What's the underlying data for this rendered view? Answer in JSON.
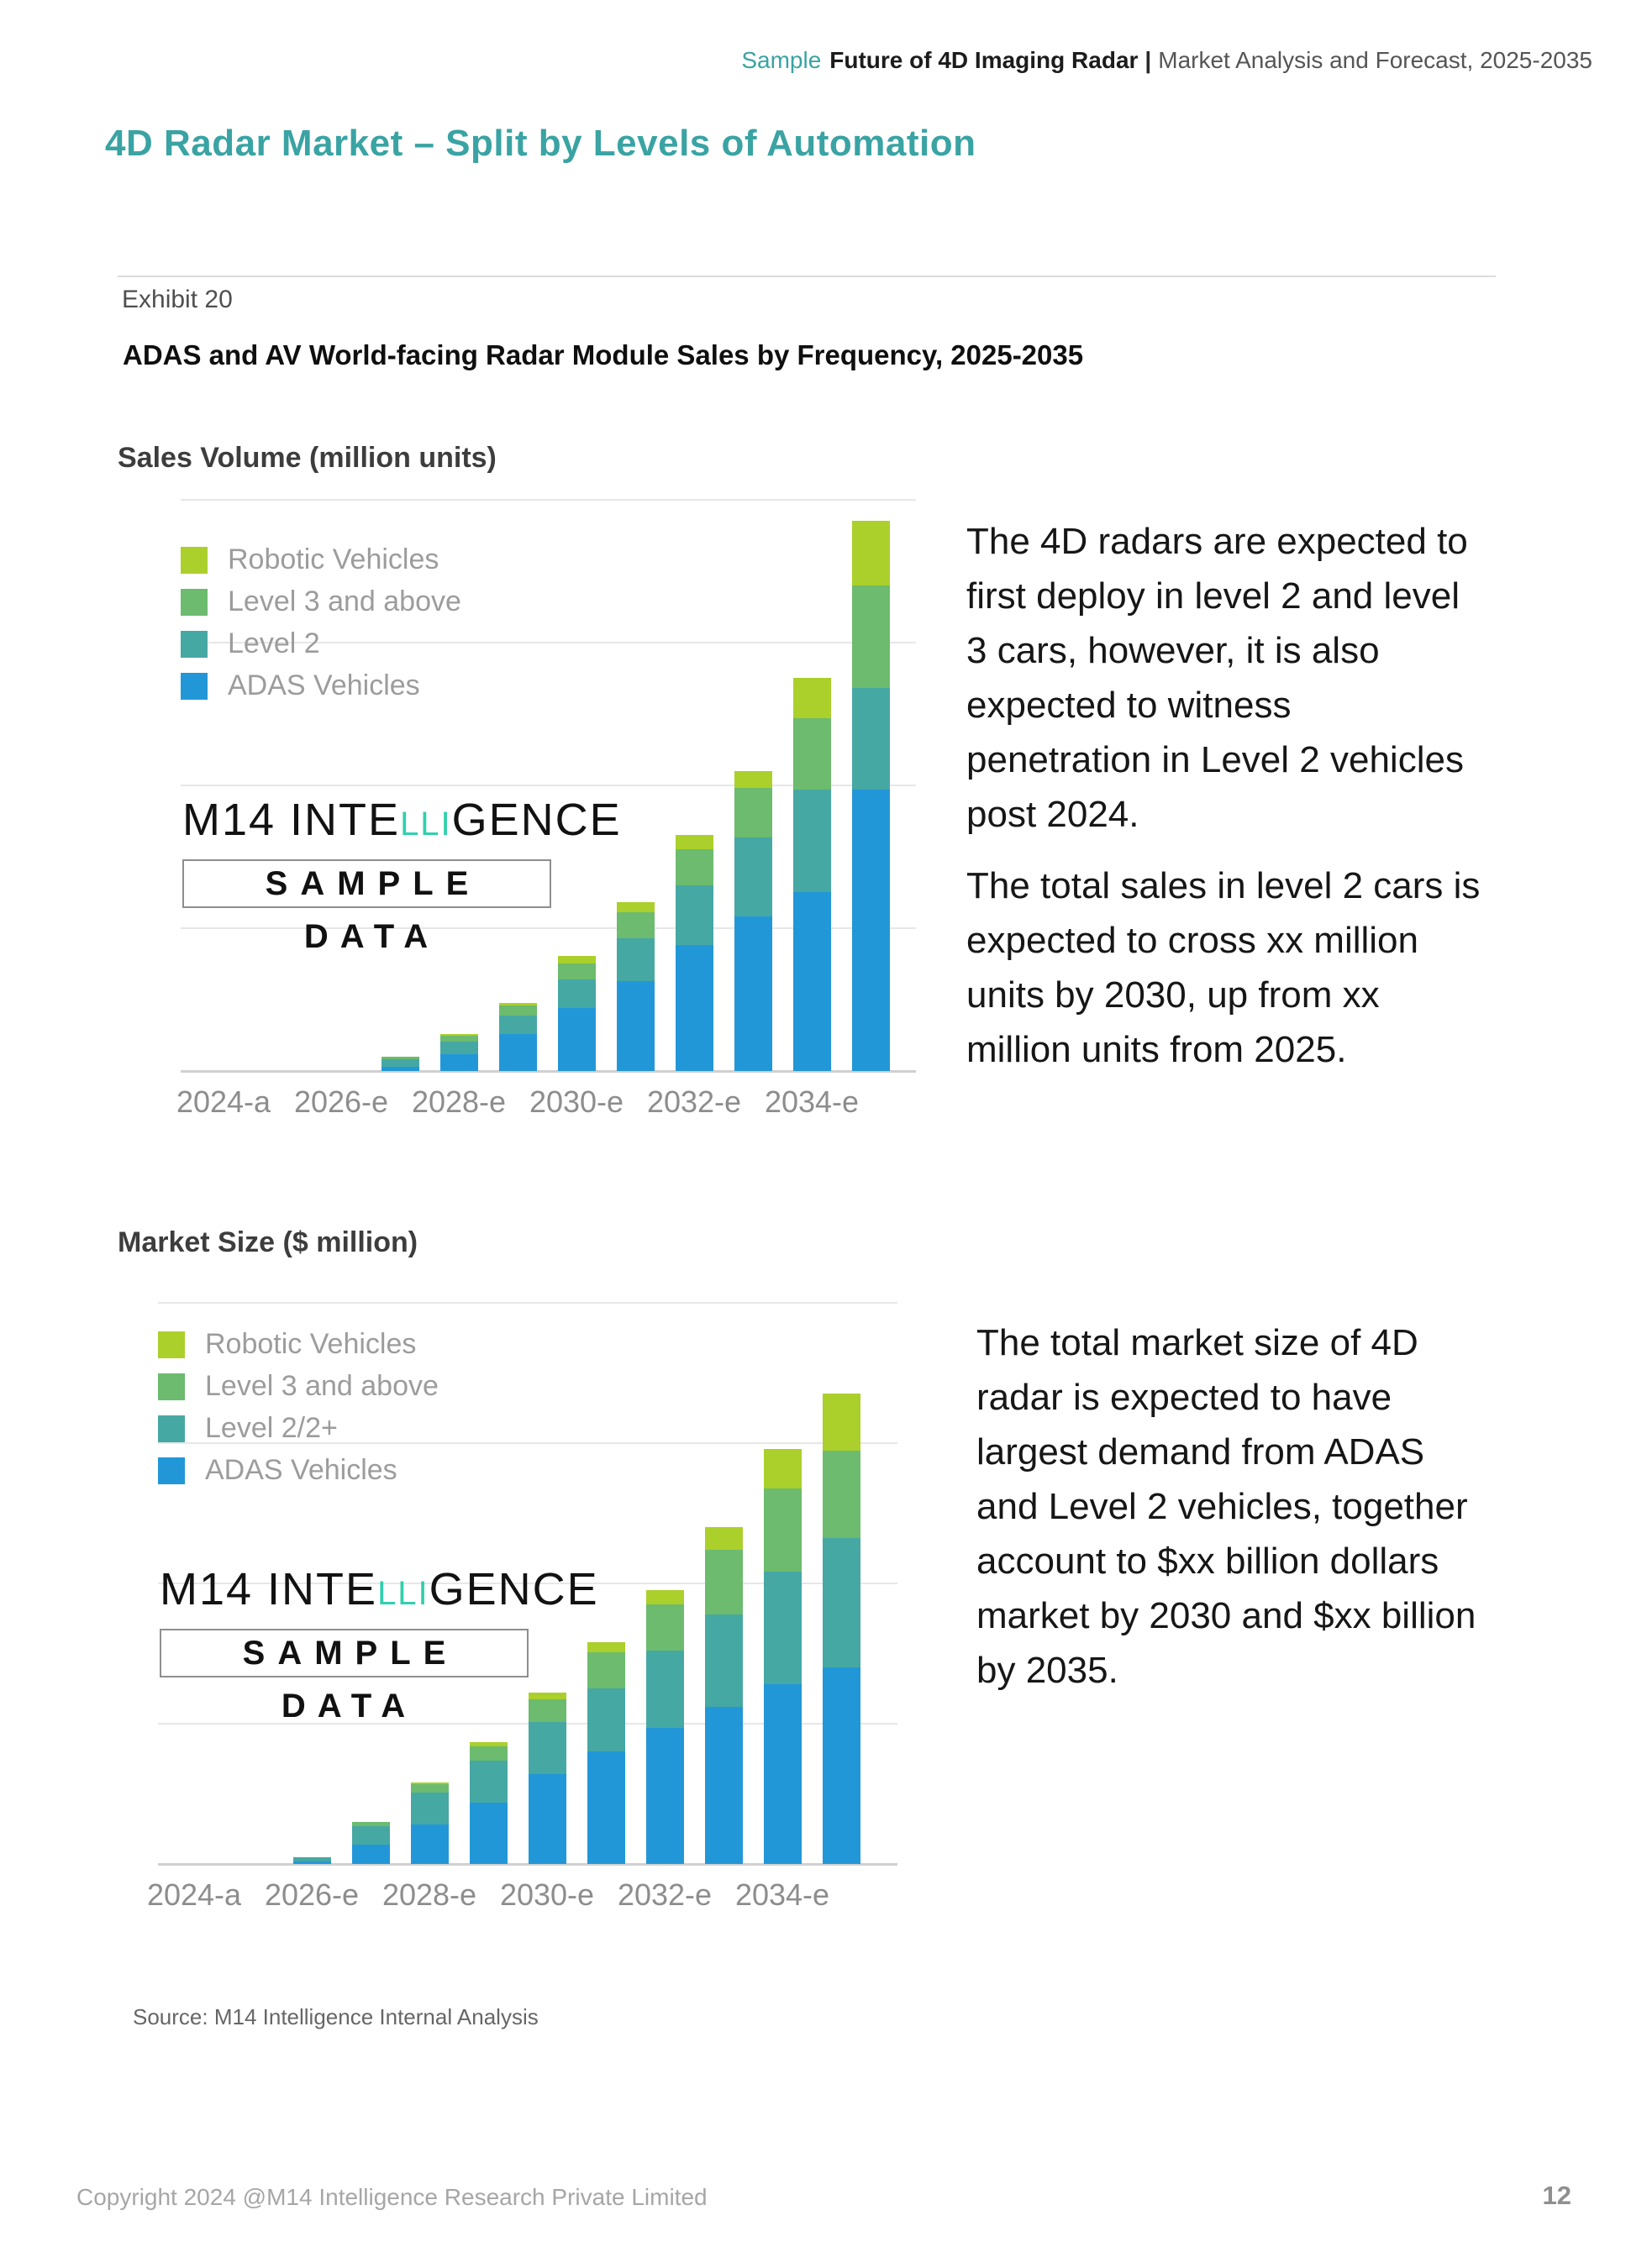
{
  "colors": {
    "heading_teal": "#3aa3a3",
    "logo_accent": "#2fd0ae",
    "adas_blue": "#2297d8",
    "level2_teal": "#46a8a3",
    "level3_green": "#6cbb6e",
    "robotic_yellow_green": "#abd02b"
  },
  "header": {
    "sample_label": "Sample",
    "title_bold": "Future of 4D Imaging Radar",
    "separator": "|",
    "subtitle": "Market Analysis and Forecast, 2025-2035"
  },
  "title": "4D Radar Market – Split by Levels of Automation",
  "exhibit": {
    "label": "Exhibit 20",
    "title": "ADAS and AV World-facing Radar Module Sales by Frequency, 2025-2035"
  },
  "watermark": {
    "logo_prefix": "M14 INTE",
    "logo_accent": "LLI",
    "logo_suffix": "GENCE",
    "sample": "SAMPLE",
    "data": "DATA"
  },
  "sections": [
    {
      "heading": "Sales Volume (million units)",
      "paragraphs": [
        "The 4D radars are expected to\nfirst deploy in level 2 and level\n3 cars, however, it is also\nexpected to witness\npenetration in Level 2 vehicles\npost 2024.",
        "The total sales in level 2 cars is\nexpected to cross xx million\nunits by 2030, up from xx\nmillion units from 2025."
      ]
    },
    {
      "heading": "Market Size ($ million)",
      "paragraphs": [
        "The total market size of 4D\nradar is expected to have\nlargest demand from ADAS\nand Level 2 vehicles, together\naccount to $xx billion dollars\nmarket by 2030 and $xx billion\nby 2035."
      ]
    }
  ],
  "source": "Source: M14 Intelligence Internal Analysis",
  "footer": {
    "copyright": "Copyright 2024 @M14 Intelligence Research Private Limited",
    "page_number": "12"
  },
  "chart_data": [
    {
      "type": "bar",
      "stacked": true,
      "title": "Sales Volume (million units)",
      "categories": [
        "2024-a",
        "2025-e",
        "2026-e",
        "2027-e",
        "2028-e",
        "2029-e",
        "2030-e",
        "2031-e",
        "2032-e",
        "2033-e",
        "2034-e",
        "2035-e"
      ],
      "x_tick_labels_shown": [
        "2024-a",
        "2026-e",
        "2028-e",
        "2030-e",
        "2032-e",
        "2034-e"
      ],
      "ylabel": "",
      "ylim": [
        0,
        4
      ],
      "grid_intervals": 4,
      "y_tick_labels_visible": false,
      "legend_position": "top-left-inside",
      "legend": [
        "Robotic Vehicles",
        "Level 3 and above",
        "Level 2",
        "ADAS Vehicles"
      ],
      "series": [
        {
          "name": "ADAS Vehicles",
          "color": "#2297d8",
          "values": [
            0,
            0,
            0,
            0.03,
            0.12,
            0.26,
            0.44,
            0.63,
            0.88,
            1.08,
            1.25,
            1.97
          ]
        },
        {
          "name": "Level 2",
          "color": "#46a8a3",
          "values": [
            0,
            0,
            0,
            0.05,
            0.09,
            0.13,
            0.2,
            0.3,
            0.42,
            0.55,
            0.72,
            0.71
          ]
        },
        {
          "name": "Level 3 and above",
          "color": "#6cbb6e",
          "values": [
            0,
            0,
            0,
            0.02,
            0.04,
            0.07,
            0.11,
            0.18,
            0.25,
            0.35,
            0.5,
            0.72
          ]
        },
        {
          "name": "Robotic Vehicles",
          "color": "#abd02b",
          "values": [
            0,
            0,
            0,
            0,
            0.01,
            0.02,
            0.05,
            0.07,
            0.1,
            0.12,
            0.28,
            0.45
          ]
        }
      ]
    },
    {
      "type": "bar",
      "stacked": true,
      "title": "Market Size ($ million)",
      "categories": [
        "2024-a",
        "2025-e",
        "2026-e",
        "2027-e",
        "2028-e",
        "2029-e",
        "2030-e",
        "2031-e",
        "2032-e",
        "2033-e",
        "2034-e",
        "2035-e"
      ],
      "x_tick_labels_shown": [
        "2024-a",
        "2026-e",
        "2028-e",
        "2030-e",
        "2032-e",
        "2034-e"
      ],
      "ylabel": "",
      "ylim": [
        0,
        4
      ],
      "grid_intervals": 4,
      "y_tick_labels_visible": false,
      "legend_position": "top-left-inside",
      "legend": [
        "Robotic Vehicles",
        "Level 3 and above",
        "Level 2/2+",
        "ADAS Vehicles"
      ],
      "series": [
        {
          "name": "ADAS Vehicles",
          "color": "#2297d8",
          "values": [
            0,
            0,
            0.02,
            0.14,
            0.28,
            0.44,
            0.64,
            0.8,
            0.97,
            1.12,
            1.28,
            1.4
          ]
        },
        {
          "name": "Level 2/2+",
          "color": "#46a8a3",
          "values": [
            0,
            0,
            0.03,
            0.13,
            0.23,
            0.3,
            0.37,
            0.45,
            0.55,
            0.66,
            0.8,
            0.92
          ]
        },
        {
          "name": "Level 3 and above",
          "color": "#6cbb6e",
          "values": [
            0,
            0,
            0,
            0.03,
            0.06,
            0.1,
            0.16,
            0.26,
            0.33,
            0.46,
            0.59,
            0.62
          ]
        },
        {
          "name": "Robotic Vehicles",
          "color": "#abd02b",
          "values": [
            0,
            0,
            0,
            0,
            0.01,
            0.03,
            0.05,
            0.07,
            0.1,
            0.16,
            0.28,
            0.41
          ]
        }
      ]
    }
  ]
}
